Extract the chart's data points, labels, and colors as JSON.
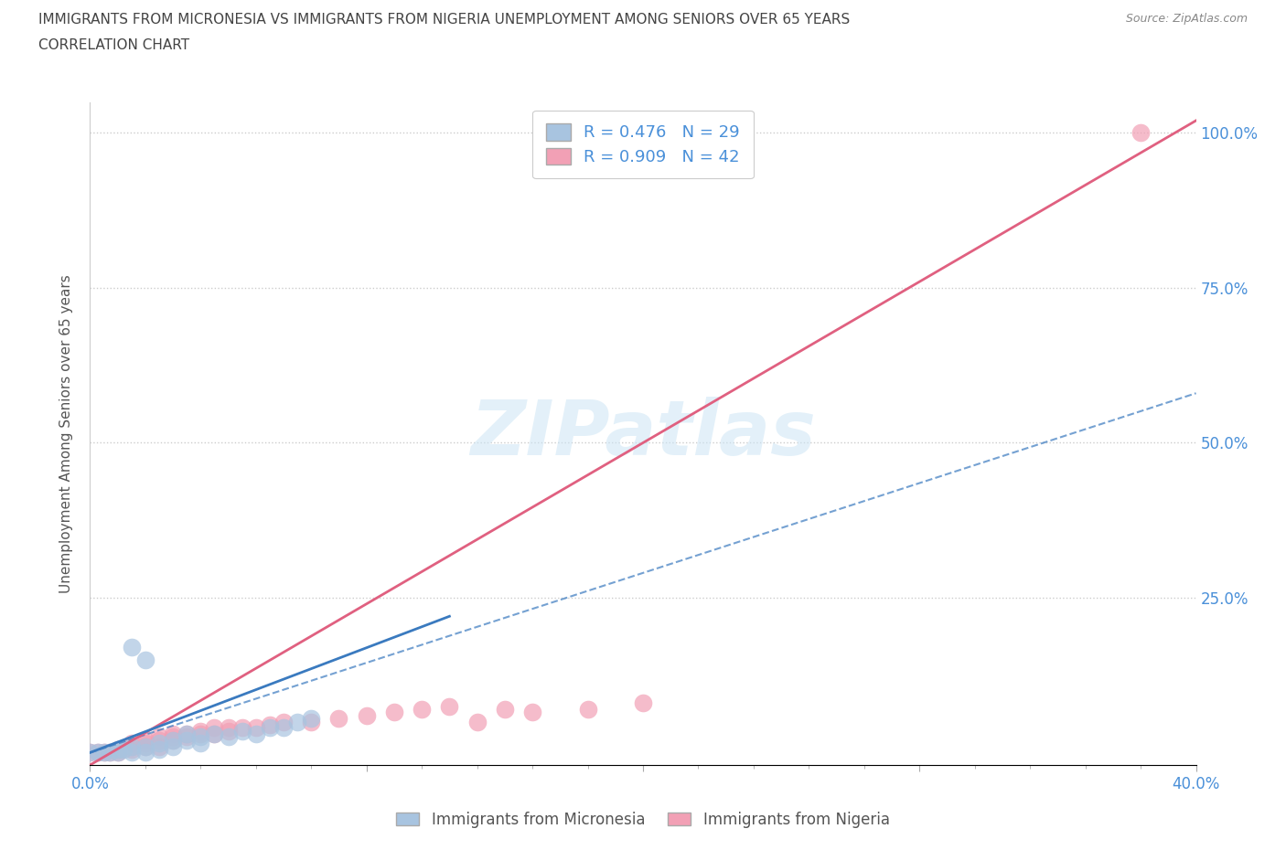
{
  "title_line1": "IMMIGRANTS FROM MICRONESIA VS IMMIGRANTS FROM NIGERIA UNEMPLOYMENT AMONG SENIORS OVER 65 YEARS",
  "title_line2": "CORRELATION CHART",
  "source": "Source: ZipAtlas.com",
  "ylabel": "Unemployment Among Seniors over 65 years",
  "xlim": [
    0.0,
    0.4
  ],
  "ylim": [
    -0.02,
    1.05
  ],
  "micronesia_color": "#a8c4e0",
  "nigeria_color": "#f2a0b5",
  "micronesia_line_color": "#3a7abf",
  "nigeria_line_color": "#e06080",
  "micronesia_R": 0.476,
  "micronesia_N": 29,
  "nigeria_R": 0.909,
  "nigeria_N": 42,
  "title_color": "#444444",
  "axis_label_color": "#555555",
  "tick_color": "#4a90d9",
  "watermark": "ZIPatlas",
  "background_color": "#ffffff",
  "micronesia_scatter": [
    [
      0.0,
      0.0
    ],
    [
      0.003,
      0.0
    ],
    [
      0.005,
      0.0
    ],
    [
      0.007,
      0.0
    ],
    [
      0.01,
      0.0
    ],
    [
      0.01,
      0.005
    ],
    [
      0.012,
      0.005
    ],
    [
      0.015,
      0.01
    ],
    [
      0.015,
      0.0
    ],
    [
      0.02,
      0.01
    ],
    [
      0.02,
      0.0
    ],
    [
      0.025,
      0.015
    ],
    [
      0.025,
      0.005
    ],
    [
      0.03,
      0.01
    ],
    [
      0.03,
      0.02
    ],
    [
      0.035,
      0.02
    ],
    [
      0.035,
      0.03
    ],
    [
      0.04,
      0.015
    ],
    [
      0.04,
      0.025
    ],
    [
      0.045,
      0.03
    ],
    [
      0.05,
      0.025
    ],
    [
      0.055,
      0.035
    ],
    [
      0.06,
      0.03
    ],
    [
      0.065,
      0.04
    ],
    [
      0.07,
      0.04
    ],
    [
      0.075,
      0.05
    ],
    [
      0.08,
      0.055
    ],
    [
      0.015,
      0.17
    ],
    [
      0.02,
      0.15
    ]
  ],
  "nigeria_scatter": [
    [
      0.0,
      0.0
    ],
    [
      0.003,
      0.0
    ],
    [
      0.005,
      0.0
    ],
    [
      0.007,
      0.0
    ],
    [
      0.01,
      0.0
    ],
    [
      0.01,
      0.005
    ],
    [
      0.015,
      0.005
    ],
    [
      0.015,
      0.01
    ],
    [
      0.015,
      0.015
    ],
    [
      0.02,
      0.01
    ],
    [
      0.02,
      0.015
    ],
    [
      0.02,
      0.02
    ],
    [
      0.025,
      0.01
    ],
    [
      0.025,
      0.02
    ],
    [
      0.025,
      0.025
    ],
    [
      0.03,
      0.02
    ],
    [
      0.03,
      0.025
    ],
    [
      0.03,
      0.03
    ],
    [
      0.035,
      0.025
    ],
    [
      0.035,
      0.03
    ],
    [
      0.04,
      0.03
    ],
    [
      0.04,
      0.035
    ],
    [
      0.045,
      0.03
    ],
    [
      0.045,
      0.04
    ],
    [
      0.05,
      0.035
    ],
    [
      0.05,
      0.04
    ],
    [
      0.055,
      0.04
    ],
    [
      0.06,
      0.04
    ],
    [
      0.065,
      0.045
    ],
    [
      0.07,
      0.05
    ],
    [
      0.08,
      0.05
    ],
    [
      0.09,
      0.055
    ],
    [
      0.1,
      0.06
    ],
    [
      0.11,
      0.065
    ],
    [
      0.12,
      0.07
    ],
    [
      0.13,
      0.075
    ],
    [
      0.14,
      0.05
    ],
    [
      0.15,
      0.07
    ],
    [
      0.16,
      0.065
    ],
    [
      0.18,
      0.07
    ],
    [
      0.2,
      0.08
    ],
    [
      0.38,
      1.0
    ]
  ],
  "nigeria_line": [
    [
      0.0,
      -0.02
    ],
    [
      0.4,
      1.02
    ]
  ],
  "micronesia_line_solid": [
    [
      0.0,
      0.0
    ],
    [
      0.13,
      0.22
    ]
  ],
  "micronesia_line_dashed": [
    [
      0.0,
      0.0
    ],
    [
      0.4,
      0.58
    ]
  ],
  "grid_color": "#cccccc",
  "legend_text_color": "#4a90d9"
}
